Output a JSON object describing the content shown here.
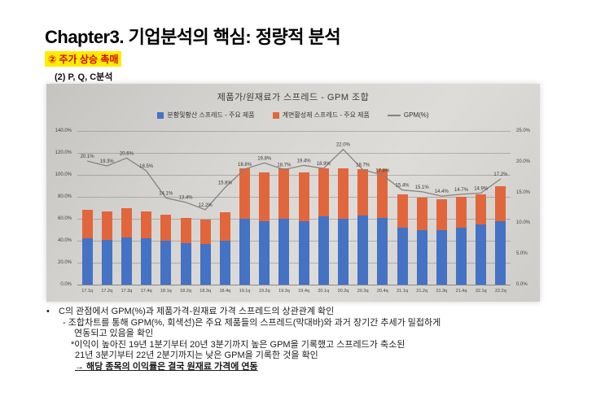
{
  "page": {
    "title": "Chapter3. 기업분석의 핵심: 정량적 분석",
    "subtitle": "② 주가 상승 촉매",
    "section": "(2) P, Q, C분석"
  },
  "chart_data": {
    "type": "bar",
    "title": "제품가/원재료가 스프레드 - GPM 조합",
    "categories": [
      "17.1q",
      "17.2q",
      "17.3q",
      "17.4q",
      "18.1q",
      "18.2q",
      "18.3q",
      "18.4q",
      "19.1q",
      "19.2q",
      "19.3q",
      "19.4q",
      "20.1q",
      "20.2q",
      "20.3q",
      "20.4q",
      "21.1q",
      "21.2q",
      "21.3q",
      "21.4q",
      "22.1q",
      "22.2q"
    ],
    "series": [
      {
        "name": "분황및황산 스프레드 - 주요 제품",
        "type": "bar",
        "color": "#4472c4",
        "values": [
          42,
          41,
          43,
          42,
          40,
          38,
          37,
          40,
          60,
          58,
          60,
          58,
          62,
          60,
          63,
          61,
          52,
          50,
          50,
          52,
          55,
          58
        ]
      },
      {
        "name": "계면활성제 스프레드 - 주요 제품",
        "type": "bar",
        "color": "#e2663c",
        "values": [
          26,
          26,
          27,
          25,
          24,
          23,
          22,
          26,
          46,
          44,
          46,
          44,
          44,
          46,
          42,
          44,
          30,
          29,
          28,
          28,
          27,
          32
        ]
      },
      {
        "name": "GPM(%)",
        "type": "line",
        "color": "#85827f",
        "axis": "right",
        "values": [
          20.1,
          19.3,
          20.6,
          18.5,
          14.1,
          13.4,
          12.2,
          15.8,
          18.8,
          19.8,
          18.7,
          19.4,
          18.9,
          22.0,
          18.7,
          17.8,
          15.4,
          15.1,
          14.4,
          14.7,
          14.9,
          17.2
        ],
        "labels": [
          "20.1%",
          "19.3%",
          "20.6%",
          "18.5%",
          "14.1%",
          "13.4%",
          "12.2%",
          "15.8%",
          "18.8%",
          "19.8%",
          "18.7%",
          "19.4%",
          "18.9%",
          "22.0%",
          "18.7%",
          "17.8%",
          "15.4%",
          "15.1%",
          "14.4%",
          "14.7%",
          "14.9%",
          "17.2%"
        ]
      }
    ],
    "left_axis": {
      "min": 0,
      "max": 140,
      "ticks": [
        "0.0%",
        "20.0%",
        "40.0%",
        "60.0%",
        "80.0%",
        "100.0%",
        "120.0%",
        "140.0%"
      ]
    },
    "right_axis": {
      "min": 0,
      "max": 25,
      "ticks": [
        "0.0%",
        "5.0%",
        "10.0%",
        "15.0%",
        "20.0%",
        "25.0%"
      ]
    },
    "legend_position": "top",
    "grid": true
  },
  "notes": {
    "bullet": "•",
    "l1": "C의 관점에서 GPM(%)과 제품가격-원재료 가격 스프레드의 상관관계 확인",
    "l2": "- 조합차트를 통해 GPM(%, 회색선)은 주요 제품들의 스프레드(막대바)와 과거 장기간 추세가 밀접하게",
    "l3": "연동되고 있음을 확인",
    "l4": "*이익이 높아진 19년 1분기부터 20년 3분기까지 높은 GPM을 기록했고 스프레드가 축소된",
    "l5": "21년 3분기부터 22년 2분기까지는 낮은 GPM을 기록한 것을 확인",
    "l6": "→ 해당 종목의 이익률은 결국 원재료 가격에 연동"
  }
}
